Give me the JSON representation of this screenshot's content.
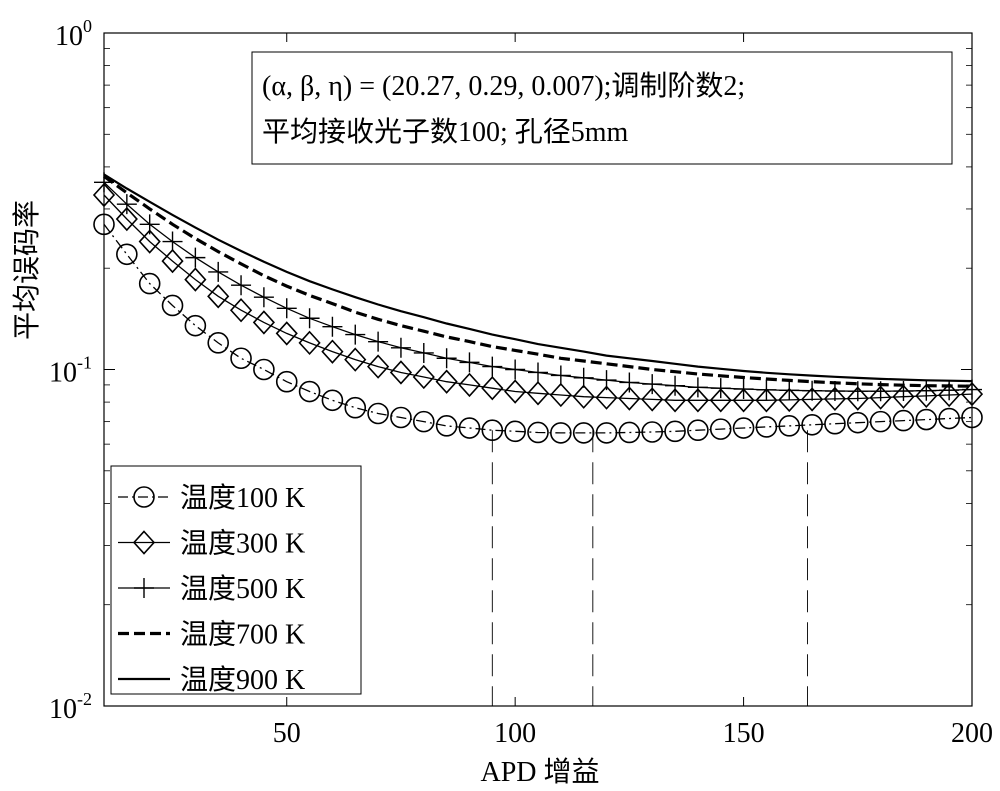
{
  "chart_data": {
    "type": "line",
    "xlabel": "APD 增益",
    "ylabel": "平均误码率",
    "xlim": [
      10,
      200
    ],
    "ylim": [
      0.01,
      1
    ],
    "yscale": "log",
    "xticks": [
      50,
      100,
      150,
      200
    ],
    "yticks": [
      {
        "value": 0.01,
        "base": "10",
        "exp": "-2"
      },
      {
        "value": 0.1,
        "base": "10",
        "exp": "-1"
      },
      {
        "value": 1,
        "base": "10",
        "exp": "0"
      }
    ],
    "annotation": {
      "line1": "(α, β, η) = (20.27, 0.29, 0.007);调制阶数2;",
      "line2": "平均接收光子数100; 孔径5mm"
    },
    "vlines": [
      95,
      117,
      164
    ],
    "legend_position": "bottom-left",
    "x": [
      10,
      15,
      20,
      25,
      30,
      35,
      40,
      45,
      50,
      55,
      60,
      65,
      70,
      75,
      80,
      85,
      90,
      95,
      100,
      105,
      110,
      115,
      120,
      125,
      130,
      135,
      140,
      145,
      150,
      155,
      160,
      165,
      170,
      175,
      180,
      185,
      190,
      195,
      200
    ],
    "series": [
      {
        "name": "温度100 K",
        "marker": "circle",
        "line": "dashdot",
        "values": [
          0.27,
          0.22,
          0.18,
          0.155,
          0.135,
          0.12,
          0.108,
          0.1,
          0.092,
          0.086,
          0.081,
          0.077,
          0.074,
          0.072,
          0.07,
          0.068,
          0.067,
          0.066,
          0.0655,
          0.065,
          0.0648,
          0.0648,
          0.0648,
          0.065,
          0.0652,
          0.0655,
          0.066,
          0.0665,
          0.067,
          0.0675,
          0.068,
          0.0685,
          0.069,
          0.0695,
          0.07,
          0.0705,
          0.071,
          0.0715,
          0.072
        ]
      },
      {
        "name": "温度300 K",
        "marker": "diamond",
        "line": "thin",
        "values": [
          0.33,
          0.28,
          0.24,
          0.21,
          0.185,
          0.165,
          0.15,
          0.138,
          0.128,
          0.12,
          0.113,
          0.107,
          0.102,
          0.098,
          0.095,
          0.092,
          0.09,
          0.088,
          0.086,
          0.085,
          0.084,
          0.083,
          0.0825,
          0.082,
          0.0815,
          0.081,
          0.081,
          0.081,
          0.081,
          0.081,
          0.0812,
          0.0815,
          0.0818,
          0.082,
          0.0825,
          0.083,
          0.0835,
          0.084,
          0.0845
        ]
      },
      {
        "name": "温度500 K",
        "marker": "plus",
        "line": "thin",
        "values": [
          0.36,
          0.31,
          0.27,
          0.24,
          0.215,
          0.195,
          0.178,
          0.164,
          0.152,
          0.142,
          0.134,
          0.127,
          0.121,
          0.116,
          0.112,
          0.108,
          0.105,
          0.102,
          0.1,
          0.098,
          0.096,
          0.0945,
          0.093,
          0.0915,
          0.0905,
          0.0895,
          0.0885,
          0.088,
          0.0875,
          0.087,
          0.0867,
          0.0865,
          0.0863,
          0.0862,
          0.0862,
          0.0863,
          0.0865,
          0.0868,
          0.0872
        ]
      },
      {
        "name": "温度700 K",
        "marker": "none",
        "line": "thick-dashed",
        "values": [
          0.375,
          0.335,
          0.3,
          0.27,
          0.245,
          0.224,
          0.206,
          0.19,
          0.177,
          0.166,
          0.157,
          0.148,
          0.141,
          0.135,
          0.13,
          0.125,
          0.121,
          0.117,
          0.114,
          0.111,
          0.108,
          0.106,
          0.104,
          0.102,
          0.1,
          0.0985,
          0.097,
          0.0958,
          0.0947,
          0.0937,
          0.0928,
          0.092,
          0.0913,
          0.0907,
          0.0902,
          0.0898,
          0.0895,
          0.0893,
          0.0892
        ]
      },
      {
        "name": "温度900 K",
        "marker": "none",
        "line": "solid-medium",
        "values": [
          0.38,
          0.345,
          0.315,
          0.288,
          0.264,
          0.243,
          0.225,
          0.209,
          0.195,
          0.183,
          0.173,
          0.164,
          0.156,
          0.149,
          0.143,
          0.137,
          0.132,
          0.127,
          0.123,
          0.119,
          0.116,
          0.113,
          0.11,
          0.108,
          0.106,
          0.104,
          0.102,
          0.1005,
          0.099,
          0.0978,
          0.0968,
          0.0959,
          0.0951,
          0.0944,
          0.0938,
          0.0933,
          0.0929,
          0.0926,
          0.0924
        ]
      }
    ]
  }
}
